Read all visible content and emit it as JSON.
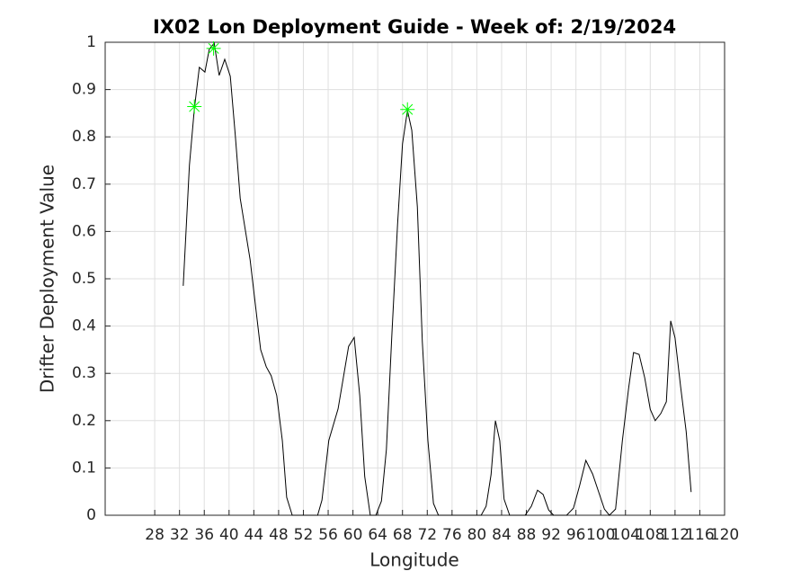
{
  "chart_data": {
    "type": "line",
    "title": "IX02 Lon Deployment Guide - Week of: 2/19/2024",
    "x_label": "Longitude",
    "y_label": "Drifter Deployment Value",
    "xlim": [
      20,
      120
    ],
    "xticks": [
      28,
      32,
      36,
      40,
      44,
      48,
      52,
      56,
      60,
      64,
      68,
      72,
      76,
      80,
      84,
      88,
      92,
      96,
      100,
      104,
      108,
      112,
      116,
      120
    ],
    "ylim": [
      0,
      1
    ],
    "yticks": [
      0,
      0.1,
      0.2,
      0.3,
      0.4,
      0.5,
      0.6,
      0.7,
      0.8,
      0.9,
      1
    ],
    "grid": true,
    "series": [
      {
        "color": "#000000",
        "style": "line",
        "x": [
          32.6,
          33.6,
          34.4,
          35.2,
          36.1,
          36.8,
          37.6,
          38.4,
          39.3,
          40.2,
          41.0,
          41.8,
          43.4,
          45.1,
          46.0,
          46.8,
          47.7,
          48.6,
          49.3,
          50.2,
          54.3,
          55.0,
          56.1,
          57.6,
          59.3,
          60.2,
          61.1,
          61.9,
          62.8,
          63.7,
          64.6,
          65.4,
          66.3,
          67.2,
          68.0,
          68.8,
          69.5,
          70.4,
          71.2,
          72.1,
          73.0,
          73.8,
          80.7,
          81.5,
          82.3,
          83.0,
          83.7,
          84.4,
          85.3,
          87.8,
          88.8,
          89.8,
          90.7,
          91.6,
          92.4,
          94.5,
          95.6,
          96.6,
          97.6,
          98.7,
          99.7,
          100.6,
          101.4,
          102.4,
          103.5,
          104.5,
          105.3,
          106.2,
          107.1,
          108.0,
          108.8,
          109.7,
          110.6,
          111.3,
          112.0,
          112.9,
          113.8,
          114.6
        ],
        "values": [
          0.485,
          0.74,
          0.86,
          0.947,
          0.937,
          0.985,
          0.998,
          0.93,
          0.964,
          0.928,
          0.804,
          0.67,
          0.54,
          0.35,
          0.314,
          0.295,
          0.253,
          0.158,
          0.038,
          0,
          0,
          0.032,
          0.158,
          0.225,
          0.357,
          0.376,
          0.253,
          0.082,
          0,
          0,
          0.03,
          0.139,
          0.386,
          0.614,
          0.785,
          0.856,
          0.814,
          0.652,
          0.367,
          0.158,
          0.025,
          0,
          0,
          0.019,
          0.086,
          0.2,
          0.158,
          0.034,
          0,
          0,
          0.019,
          0.053,
          0.044,
          0.011,
          0,
          0,
          0.015,
          0.063,
          0.116,
          0.087,
          0.048,
          0.013,
          0,
          0.013,
          0.158,
          0.268,
          0.344,
          0.34,
          0.291,
          0.224,
          0.2,
          0.215,
          0.24,
          0.411,
          0.375,
          0.272,
          0.177,
          0.049
        ]
      },
      {
        "color": "#00ff00",
        "style": "marker",
        "x": [
          34.4,
          37.5,
          68.8
        ],
        "values": [
          0.864,
          0.987,
          0.858
        ]
      }
    ]
  }
}
